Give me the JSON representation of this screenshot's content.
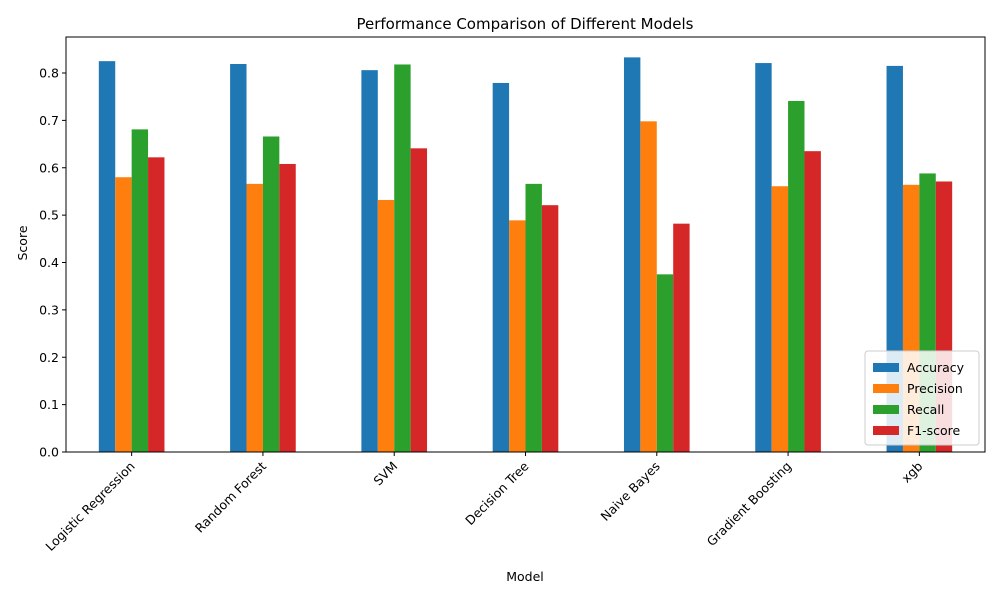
{
  "chart_data": {
    "type": "bar",
    "title": "Performance Comparison of Different Models",
    "xlabel": "Model",
    "ylabel": "Score",
    "ylim": [
      0,
      0.876
    ],
    "yticks": [
      "0.0",
      "0.1",
      "0.2",
      "0.3",
      "0.4",
      "0.5",
      "0.6",
      "0.7",
      "0.8"
    ],
    "categories": [
      "Logistic Regression",
      "Random Forest",
      "SVM",
      "Decision Tree",
      "Naive Bayes",
      "Gradient Boosting",
      "xgb"
    ],
    "series": [
      {
        "name": "Accuracy",
        "color": "#1f77b4",
        "values": [
          0.825,
          0.819,
          0.806,
          0.779,
          0.833,
          0.821,
          0.815
        ]
      },
      {
        "name": "Precision",
        "color": "#ff7f0e",
        "values": [
          0.58,
          0.566,
          0.532,
          0.489,
          0.698,
          0.561,
          0.564
        ]
      },
      {
        "name": "Recall",
        "color": "#2ca02c",
        "values": [
          0.681,
          0.666,
          0.818,
          0.566,
          0.375,
          0.741,
          0.588
        ]
      },
      {
        "name": "F1-score",
        "color": "#d62728",
        "values": [
          0.622,
          0.608,
          0.641,
          0.521,
          0.482,
          0.635,
          0.571
        ]
      }
    ],
    "grid": false,
    "legend_position": "lower-right"
  }
}
